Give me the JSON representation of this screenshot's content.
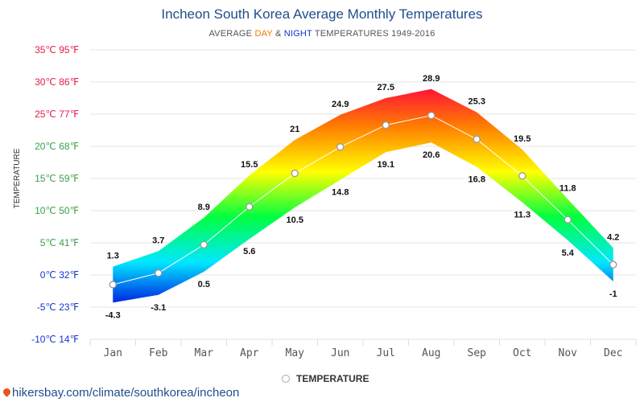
{
  "header": {
    "title": "Incheon South Korea Average Monthly Temperatures",
    "subtitle_prefix": "AVERAGE ",
    "subtitle_day": "DAY",
    "subtitle_amp": " & ",
    "subtitle_night": "NIGHT",
    "subtitle_suffix": " TEMPERATURES 1949-2016"
  },
  "legend": {
    "label": "TEMPERATURE"
  },
  "footer": {
    "link": "hikersbay.com/climate/southkorea/incheon"
  },
  "chart_data": {
    "type": "area",
    "title": "Incheon South Korea Average Monthly Temperatures",
    "subtitle": "AVERAGE DAY & NIGHT TEMPERATURES 1949-2016",
    "ylabel": "TEMPERATURE",
    "ylim": [
      -10,
      35
    ],
    "y_ticks": [
      {
        "value": 35,
        "label": "35℃ 95℉"
      },
      {
        "value": 30,
        "label": "30℃ 86℉"
      },
      {
        "value": 25,
        "label": "25℃ 77℉"
      },
      {
        "value": 20,
        "label": "20℃ 68℉"
      },
      {
        "value": 15,
        "label": "15℃ 59℉"
      },
      {
        "value": 10,
        "label": "10℃ 50℉"
      },
      {
        "value": 5,
        "label": "5℃ 41℉"
      },
      {
        "value": 0,
        "label": "0℃ 32℉"
      },
      {
        "value": -5,
        "label": "-5℃ 23℉"
      },
      {
        "value": -10,
        "label": "-10℃ 14℉"
      }
    ],
    "categories": [
      "Jan",
      "Feb",
      "Mar",
      "Apr",
      "May",
      "Jun",
      "Jul",
      "Aug",
      "Sep",
      "Oct",
      "Nov",
      "Dec"
    ],
    "series": [
      {
        "values": [
          1.3,
          3.7,
          8.9,
          15.5,
          21,
          24.9,
          27.5,
          28.9,
          25.3,
          19.5,
          11.8,
          4.2
        ]
      },
      {
        "values": [
          -4.3,
          -3.1,
          0.5,
          5.6,
          10.5,
          14.8,
          19.1,
          20.6,
          16.8,
          11.3,
          5.4,
          -1
        ]
      },
      {
        "name": "TEMPERATURE",
        "values": [
          -1.5,
          0.3,
          4.7,
          10.6,
          15.8,
          19.9,
          23.3,
          24.8,
          21.1,
          15.4,
          8.6,
          1.6
        ]
      }
    ],
    "grid": true,
    "legend_position": "bottom-center",
    "colors": {
      "title": "#1f4e8c",
      "day": "#f07800",
      "night": "#1030d0",
      "gradient": [
        "#0010e0",
        "#00e8ff",
        "#00ff40",
        "#ffff00",
        "#ff8000",
        "#ff0040"
      ]
    }
  }
}
